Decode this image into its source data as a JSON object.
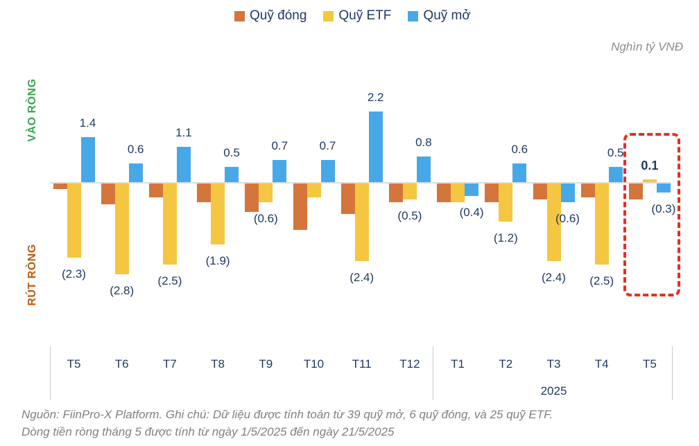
{
  "chart_data": {
    "type": "bar",
    "title": "",
    "unit_label": "Nghìn tỷ VNĐ",
    "y_axis_zone_labels": {
      "positive": "VÀO RÒNG",
      "positive_color": "#3BA64F",
      "negative": "RÚT RÒNG",
      "negative_color": "#C05A11"
    },
    "legend_position": "top",
    "legend": [
      {
        "name": "Quỹ đóng",
        "color": "#D4753B"
      },
      {
        "name": "Quỹ ETF",
        "color": "#F5C642"
      },
      {
        "name": "Quỹ mở",
        "color": "#47A8E8"
      }
    ],
    "categories": [
      "T5",
      "T6",
      "T7",
      "T8",
      "T9",
      "T10",
      "T11",
      "T12",
      "T1",
      "T2",
      "T3",
      "T4",
      "T5"
    ],
    "year_label": "2025",
    "year_label_category_index": 10,
    "series": [
      {
        "name": "Quỹ đóng",
        "values": [
          -0.2,
          -0.65,
          -0.45,
          -0.6,
          -0.9,
          -1.45,
          -0.95,
          -0.6,
          -0.6,
          -0.6,
          -0.5,
          -0.45,
          -0.5
        ]
      },
      {
        "name": "Quỹ ETF",
        "values": [
          -2.3,
          -2.8,
          -2.5,
          -1.9,
          -0.6,
          -0.45,
          -2.4,
          -0.5,
          -0.6,
          -1.2,
          -2.4,
          -2.5,
          0.1
        ]
      },
      {
        "name": "Quỹ mở",
        "values": [
          1.4,
          0.6,
          1.1,
          0.5,
          0.7,
          0.7,
          2.2,
          0.8,
          -0.4,
          0.6,
          -0.6,
          0.5,
          -0.3
        ]
      }
    ],
    "data_labels": [
      [
        {
          "series": 2,
          "text": "1.4",
          "pos": "above"
        },
        {
          "series": 1,
          "text": "(2.3)",
          "pos": "below"
        }
      ],
      [
        {
          "series": 2,
          "text": "0.6",
          "pos": "above"
        },
        {
          "series": 1,
          "text": "(2.8)",
          "pos": "below"
        }
      ],
      [
        {
          "series": 2,
          "text": "1.1",
          "pos": "above"
        },
        {
          "series": 1,
          "text": "(2.5)",
          "pos": "below"
        }
      ],
      [
        {
          "series": 2,
          "text": "0.5",
          "pos": "above"
        },
        {
          "series": 1,
          "text": "(1.9)",
          "pos": "below"
        }
      ],
      [
        {
          "series": 2,
          "text": "0.7",
          "pos": "above"
        },
        {
          "series": 1,
          "text": "(0.6)",
          "pos": "below"
        }
      ],
      [
        {
          "series": 2,
          "text": "0.7",
          "pos": "above"
        }
      ],
      [
        {
          "series": 2,
          "text": "2.2",
          "pos": "above"
        },
        {
          "series": 1,
          "text": "(2.4)",
          "pos": "below"
        }
      ],
      [
        {
          "series": 2,
          "text": "0.8",
          "pos": "above"
        },
        {
          "series": 1,
          "text": "(0.5)",
          "pos": "below"
        }
      ],
      [
        {
          "series": 2,
          "text": "(0.4)",
          "pos": "below"
        }
      ],
      [
        {
          "series": 2,
          "text": "0.6",
          "pos": "above"
        },
        {
          "series": 1,
          "text": "(1.2)",
          "pos": "below"
        }
      ],
      [
        {
          "series": 2,
          "text": "(0.6)",
          "pos": "below"
        },
        {
          "series": 1,
          "text": "(2.4)",
          "pos": "below"
        }
      ],
      [
        {
          "series": 2,
          "text": "0.5",
          "pos": "above"
        },
        {
          "series": 1,
          "text": "(2.5)",
          "pos": "below"
        }
      ],
      [
        {
          "series": 1,
          "text": "0.1",
          "pos": "above",
          "bold": true
        },
        {
          "series": 2,
          "text": "(0.3)",
          "pos": "below"
        }
      ]
    ],
    "label_color": "#1F3864",
    "highlight": {
      "category_index": 12,
      "box_color": "#ED2B23",
      "style": "dashed-rounded-rect"
    },
    "grid": false,
    "ylim": [
      -3.5,
      2.6
    ]
  },
  "footer": {
    "line1": "Nguồn: FiinPro-X Platform. Ghi chú: Dữ liệu được tính toán từ 39 quỹ mở, 6 quỹ đóng, và 25 quỹ ETF.",
    "line2": "Dòng tiền ròng tháng 5 được tính từ ngày 1/5/2025 đến ngày 21/5/2025"
  }
}
